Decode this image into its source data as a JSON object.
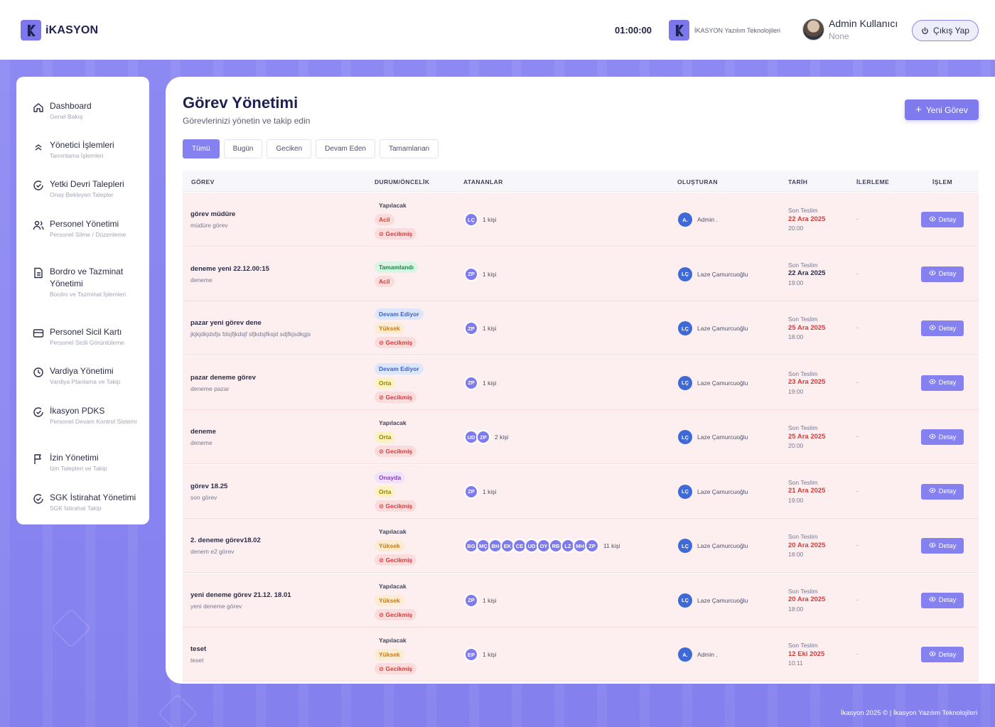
{
  "header": {
    "logo_text": "iKASYON",
    "clock": "01:00:00",
    "company_name": "İKASYON Yazılım Teknolojileri",
    "user_name": "Admin Kullanıcı",
    "user_role": "None",
    "logout_label": "Çıkış Yap"
  },
  "sidebar": {
    "items": [
      {
        "label": "Dashboard",
        "sub": "Genel Bakış",
        "icon": "home-icon"
      },
      {
        "label": "Yönetici İşlemleri",
        "sub": "Tanımlama İşlemleri",
        "icon": "chevrons-up-icon"
      },
      {
        "label": "Yetki Devri Talepleri",
        "sub": "Onay Bekleyen Talepler",
        "icon": "check-circle-icon"
      },
      {
        "label": "Personel Yönetimi",
        "sub": "Personel Silme / Düzenleme",
        "icon": "users-icon"
      },
      {
        "label": "Bordro ve Tazminat Yönetimi",
        "sub": "Bordro ve Tazminat İşlemleri",
        "icon": "document-icon"
      },
      {
        "label": "Personel Sicil Kartı",
        "sub": "Personel Sicili Görüntüleme",
        "icon": "id-card-icon"
      },
      {
        "label": "Vardiya Yönetimi",
        "sub": "Vardiya Planlama ve Takip",
        "icon": "clock-icon"
      },
      {
        "label": "İkasyon PDKS",
        "sub": "Personel Devam Kontrol Sistemi",
        "icon": "check-circle-icon"
      },
      {
        "label": "İzin Yönetimi",
        "sub": "İzin Talepleri ve Takip",
        "icon": "flag-icon"
      },
      {
        "label": "SGK İstirahat Yönetimi",
        "sub": "SGK İstirahat Takip",
        "icon": "check-circle-icon"
      }
    ]
  },
  "main": {
    "title": "Görev Yönetimi",
    "subtitle": "Görevlerinizi yönetin ve takip edin",
    "new_task_label": "Yeni Görev",
    "filters": [
      "Tümü",
      "Bugün",
      "Geciken",
      "Devam Eden",
      "Tamamlanan"
    ],
    "active_filter": "Tümü"
  },
  "table": {
    "headers": [
      "GÖREV",
      "DURUM/ÖNCELİK",
      "ATANANLAR",
      "OLUŞTURAN",
      "TARİH",
      "İLERLEME",
      "İŞLEM"
    ],
    "due_label": "Son Teslim",
    "detail_label": "Detay",
    "progress_placeholder": "-",
    "rows": [
      {
        "title": "görev müdüre",
        "desc": "müdüre görev",
        "status": "Yapılacak",
        "status_type": "plain",
        "priority": "Acil",
        "priority_type": "acil",
        "late": "Gecikmiş",
        "assignees": [
          "LÇ"
        ],
        "count": "1 kişi",
        "creator_initials": "A.",
        "creator": "Admin .",
        "date": "22 Ara 2025",
        "time": "20:00",
        "date_red": true
      },
      {
        "title": "deneme yeni 22.12.00:15",
        "desc": "deneme",
        "status": "Tamamlandı",
        "status_type": "done",
        "priority": "Acil",
        "priority_type": "acil",
        "late": "",
        "assignees": [
          "ZP"
        ],
        "count": "1 kişi",
        "creator_initials": "LÇ",
        "creator": "Laze Çamurcuoğlu",
        "date": "22 Ara 2025",
        "time": "19:00",
        "date_red": false
      },
      {
        "title": "pazar yeni görev dene",
        "desc": "jkjkjdkjdsfjs fdsjfjkdsjf sfjkdsjfksjd sdjfkjsdkgjs",
        "status": "Devam Ediyor",
        "status_type": "prog",
        "priority": "Yüksek",
        "priority_type": "yuk",
        "late": "Gecikmiş",
        "assignees": [
          "ZP"
        ],
        "count": "1 kişi",
        "creator_initials": "LÇ",
        "creator": "Laze Çamurcuoğlu",
        "date": "25 Ara 2025",
        "time": "18:00",
        "date_red": true
      },
      {
        "title": "pazar deneme görev",
        "desc": "deneme pazar",
        "status": "Devam Ediyor",
        "status_type": "prog",
        "priority": "Orta",
        "priority_type": "orta",
        "late": "Gecikmiş",
        "assignees": [
          "ZP"
        ],
        "count": "1 kişi",
        "creator_initials": "LÇ",
        "creator": "Laze Çamurcuoğlu",
        "date": "23 Ara 2025",
        "time": "19:00",
        "date_red": true
      },
      {
        "title": "deneme",
        "desc": "deneme",
        "status": "Yapılacak",
        "status_type": "plain",
        "priority": "Orta",
        "priority_type": "orta",
        "late": "Gecikmiş",
        "assignees": [
          "UD",
          "ZP"
        ],
        "count": "2 kişi",
        "creator_initials": "LÇ",
        "creator": "Laze Çamurcuoğlu",
        "date": "25 Ara 2025",
        "time": "20:00",
        "date_red": true
      },
      {
        "title": "görev 18.25",
        "desc": "son görev",
        "status": "Onayda",
        "status_type": "appr",
        "priority": "Orta",
        "priority_type": "orta",
        "late": "Gecikmiş",
        "assignees": [
          "ZP"
        ],
        "count": "1 kişi",
        "creator_initials": "LÇ",
        "creator": "Laze Çamurcuoğlu",
        "date": "21 Ara 2025",
        "time": "19:00",
        "date_red": true
      },
      {
        "title": "2. deneme görev18.02",
        "desc": "denem e2 görev",
        "status": "Yapılacak",
        "status_type": "plain",
        "priority": "Yüksek",
        "priority_type": "yuk",
        "late": "Gecikmiş",
        "assignees": [
          "BG",
          "MÇ",
          "BH",
          "EK",
          "CE",
          "UD",
          "OY",
          "RB",
          "LZ",
          "MH",
          "ZP"
        ],
        "count": "11 kişi",
        "creator_initials": "LÇ",
        "creator": "Laze Çamurcuoğlu",
        "date": "20 Ara 2025",
        "time": "18:00",
        "date_red": true
      },
      {
        "title": "yeni deneme görev 21.12. 18.01",
        "desc": "yeni deneme görev",
        "status": "Yapılacak",
        "status_type": "plain",
        "priority": "Yüksek",
        "priority_type": "yuk",
        "late": "Gecikmiş",
        "assignees": [
          "ZP"
        ],
        "count": "1 kişi",
        "creator_initials": "LÇ",
        "creator": "Laze Çamurcuoğlu",
        "date": "20 Ara 2025",
        "time": "18:00",
        "date_red": true
      },
      {
        "title": "teset",
        "desc": "teset",
        "status": "Yapılacak",
        "status_type": "plain",
        "priority": "Yüksek",
        "priority_type": "yuk",
        "late": "Gecikmiş",
        "assignees": [
          "EP"
        ],
        "count": "1 kişi",
        "creator_initials": "A.",
        "creator": "Admin .",
        "date": "12 Eki 2025",
        "time": "10:11",
        "date_red": true
      }
    ]
  },
  "footer": "İkasyon 2025 © | İkasyon Yazılım Teknolojileri",
  "colors": {
    "accent": "#8581f1",
    "danger": "#d23c3c",
    "row_bg": "#fdeff0",
    "creator_avatar": "#3e6ad8"
  }
}
